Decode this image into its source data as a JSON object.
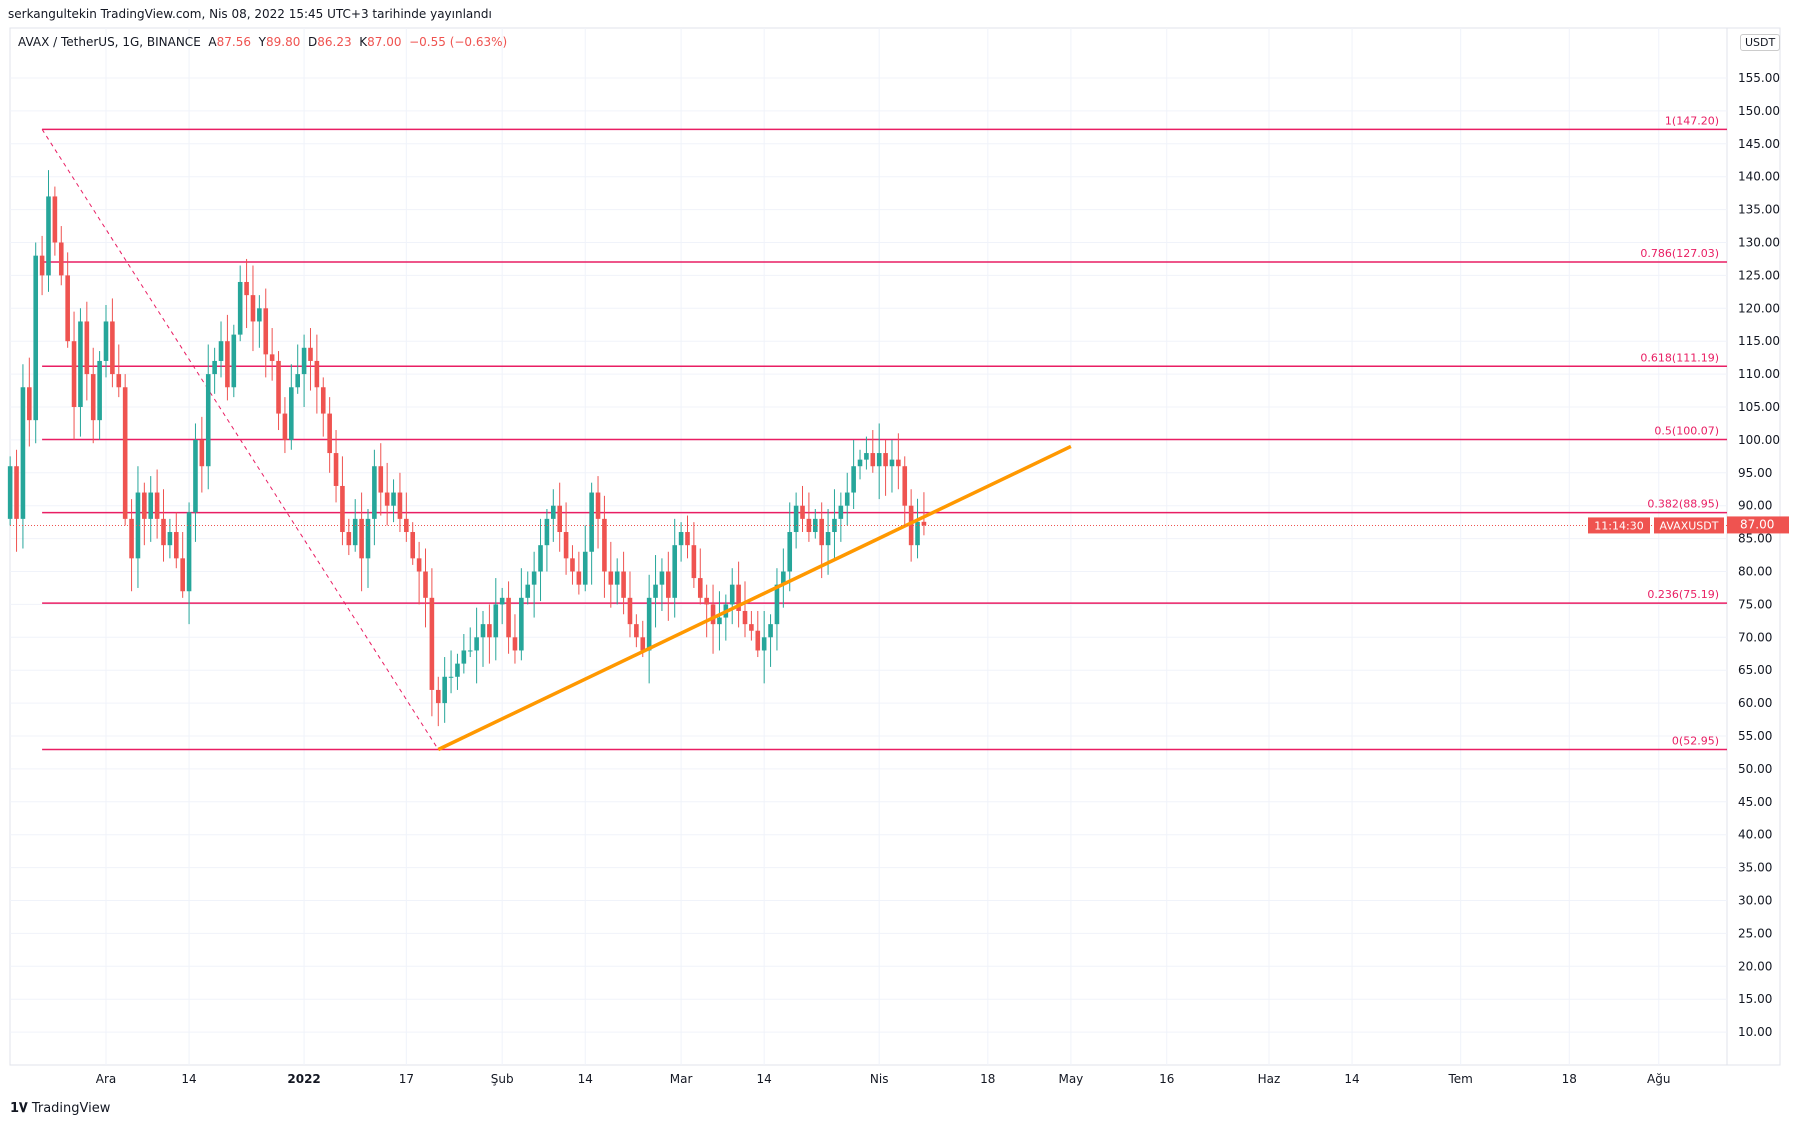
{
  "header": {
    "published": "serkangultekin TradingView.com, Nis 08, 2022 15:45 UTC+3 tarihinde yayınlandı"
  },
  "legend": {
    "symbol": "AVAX / TetherUS, 1G, BINANCE",
    "o_label": "A",
    "o": "87.56",
    "h_label": "Y",
    "h": "89.80",
    "l_label": "D",
    "l": "86.23",
    "c_label": "K",
    "c": "87.00",
    "change": "−0.55 (−0.63%)"
  },
  "currency": "USDT",
  "footer": {
    "brand": "TradingView"
  },
  "chart_data": {
    "type": "candlestick",
    "symbol": "AVAXUSDT",
    "start_date": "2021-11-16",
    "first_open": 88,
    "closes": [
      96,
      88,
      108,
      103,
      128,
      125,
      137,
      130,
      125,
      115,
      105,
      118,
      110,
      103,
      112,
      118,
      110,
      108,
      88,
      82,
      92,
      88,
      92,
      88,
      84,
      86,
      82,
      77,
      89,
      100,
      96,
      110,
      112,
      115,
      108,
      116,
      124,
      122,
      118,
      120,
      113,
      112,
      104,
      100,
      108,
      110,
      114,
      112,
      108,
      104,
      98,
      93,
      86,
      84,
      88,
      82,
      88,
      96,
      92,
      90,
      92,
      88,
      86,
      82,
      80,
      76,
      62,
      60,
      64,
      64,
      66,
      68,
      68,
      70,
      72,
      70,
      75,
      76,
      70,
      68,
      76,
      78,
      80,
      84,
      88,
      90,
      86,
      82,
      80,
      78,
      83,
      92,
      88,
      80,
      78,
      80,
      76,
      72,
      70,
      68,
      76,
      78,
      80,
      76,
      84,
      86,
      84,
      79,
      76,
      75,
      72,
      73,
      75,
      78,
      74,
      72,
      71,
      68,
      70,
      72,
      78,
      80,
      86,
      90,
      88,
      86,
      88,
      84,
      86,
      88,
      90,
      92,
      96,
      97,
      98,
      96,
      98,
      96,
      97,
      96,
      90,
      84,
      87.55,
      87
    ],
    "yticks": [
      155,
      150,
      145,
      140,
      135,
      130,
      125,
      120,
      115,
      110,
      105,
      100,
      95,
      90,
      85,
      80,
      75,
      70,
      65,
      60,
      55,
      50,
      45,
      40,
      35,
      30,
      25,
      20,
      15,
      10
    ],
    "ylim": [
      5,
      160
    ],
    "xticks": [
      {
        "label": "Ara",
        "date": "2021-12-01"
      },
      {
        "label": "14",
        "date": "2021-12-14"
      },
      {
        "label": "2022",
        "date": "2022-01-01"
      },
      {
        "label": "17",
        "date": "2022-01-17"
      },
      {
        "label": "Şub",
        "date": "2022-02-01"
      },
      {
        "label": "14",
        "date": "2022-02-14"
      },
      {
        "label": "Mar",
        "date": "2022-03-01"
      },
      {
        "label": "14",
        "date": "2022-03-14"
      },
      {
        "label": "Nis",
        "date": "2022-04-01"
      },
      {
        "label": "18",
        "date": "2022-04-18"
      },
      {
        "label": "May",
        "date": "2022-05-01"
      },
      {
        "label": "16",
        "date": "2022-05-16"
      },
      {
        "label": "Haz",
        "date": "2022-06-01"
      },
      {
        "label": "14",
        "date": "2022-06-14"
      },
      {
        "label": "Tem",
        "date": "2022-07-01"
      },
      {
        "label": "18",
        "date": "2022-07-18"
      },
      {
        "label": "Ağu",
        "date": "2022-08-01"
      }
    ],
    "fib": {
      "start_date": "2021-11-21",
      "end_date": "2022-01-22",
      "high": 147.2,
      "low": 52.95,
      "levels": [
        {
          "label": "1(147.20)",
          "value": 147.2
        },
        {
          "label": "0.786(127.03)",
          "value": 127.03
        },
        {
          "label": "0.618(111.19)",
          "value": 111.19
        },
        {
          "label": "0.5(100.07)",
          "value": 100.07
        },
        {
          "label": "0.382(88.95)",
          "value": 88.95
        },
        {
          "label": "0.236(75.19)",
          "value": 75.19
        },
        {
          "label": "0(52.95)",
          "value": 52.95
        }
      ]
    },
    "trendline": {
      "from": {
        "date": "2022-01-22",
        "price": 52.95
      },
      "to": {
        "date": "2022-05-01",
        "price": 99
      }
    },
    "last_price": {
      "label": "87.00",
      "value": 87.0,
      "countdown": "11:14:30",
      "tag": "AVAXUSDT"
    },
    "colors": {
      "up": "#26a69a",
      "down": "#ef5350",
      "fib": "#e91e63",
      "trend": "#ff9800",
      "grid": "#f0f3fa"
    }
  }
}
